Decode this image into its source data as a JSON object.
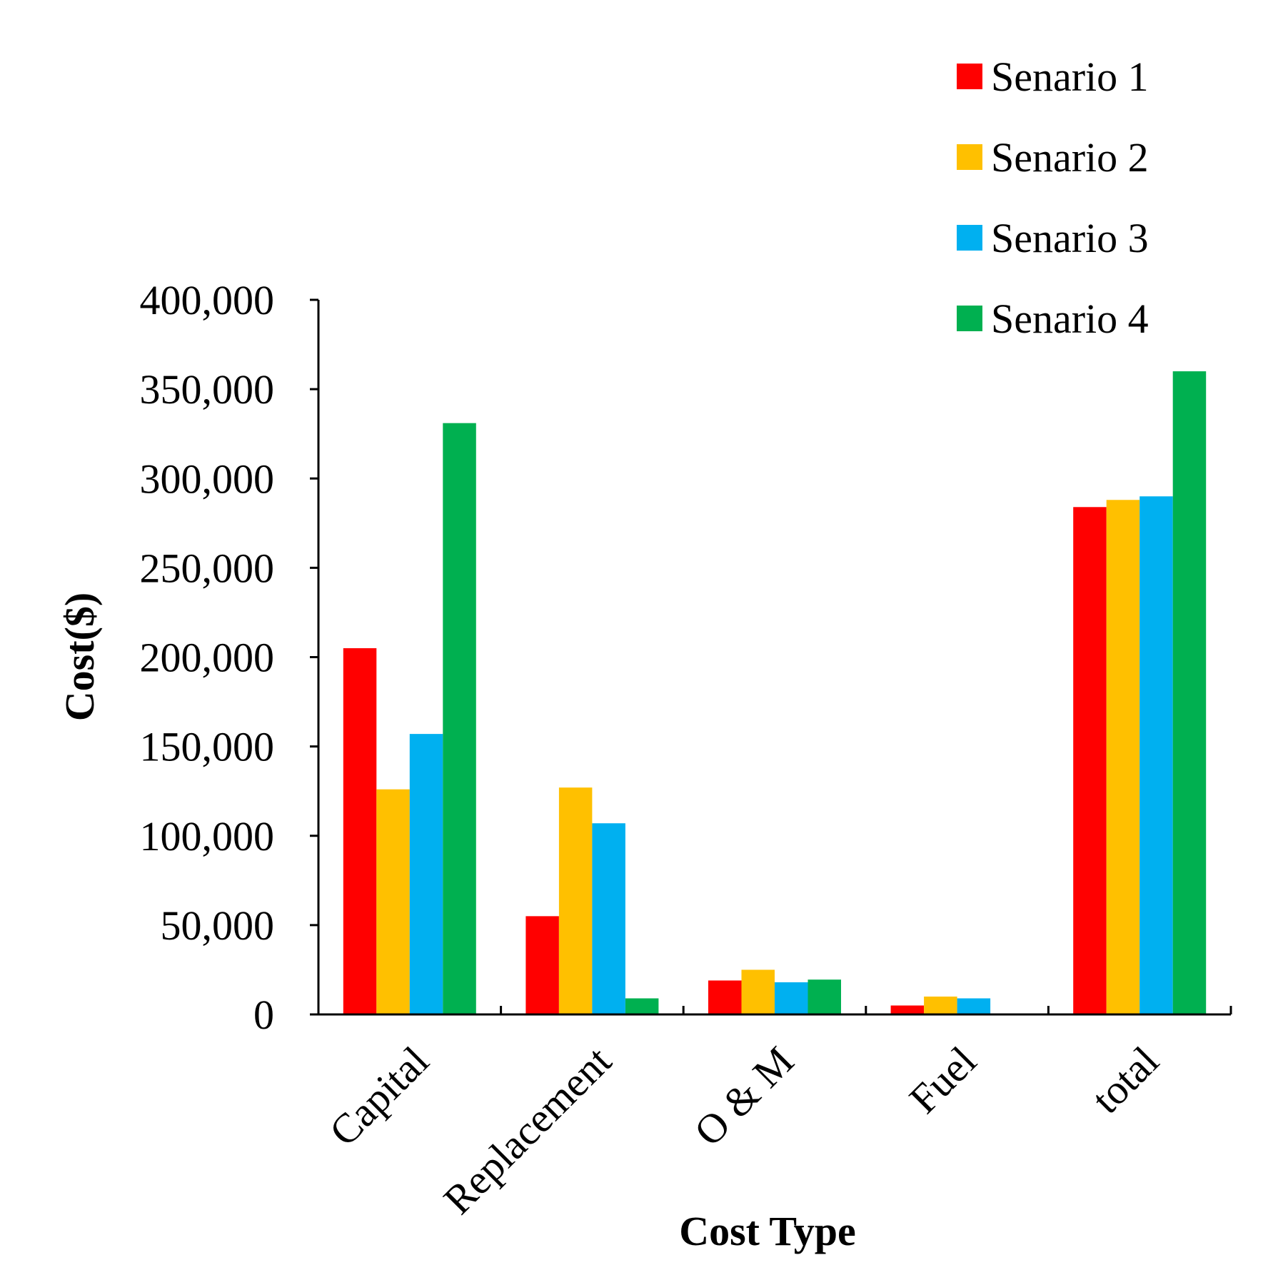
{
  "chart_data": {
    "type": "bar",
    "title": "",
    "xlabel": "Cost Type",
    "ylabel": "Cost($)",
    "categories": [
      "Capital",
      "Replacement",
      "O & M",
      "Fuel",
      "total"
    ],
    "ylim": [
      0,
      400000
    ],
    "yticks": [
      "0",
      "50,000",
      "100,000",
      "150,000",
      "200,000",
      "250,000",
      "300,000",
      "350,000",
      "400,000"
    ],
    "yticks_values": [
      0,
      50000,
      100000,
      150000,
      200000,
      250000,
      300000,
      350000,
      400000
    ],
    "grid": false,
    "legend_position": "top-right",
    "series": [
      {
        "name": "Senario 1",
        "color": "#ff0000",
        "values": [
          205000,
          55000,
          19000,
          5000,
          284000
        ]
      },
      {
        "name": "Senario 2",
        "color": "#ffc000",
        "values": [
          126000,
          127000,
          25000,
          10000,
          288000
        ]
      },
      {
        "name": "Senario 3",
        "color": "#00b0f0",
        "values": [
          157000,
          107000,
          18000,
          9000,
          290000
        ]
      },
      {
        "name": "Senario 4",
        "color": "#00b050",
        "values": [
          331000,
          9000,
          19500,
          0,
          360000
        ]
      }
    ]
  }
}
